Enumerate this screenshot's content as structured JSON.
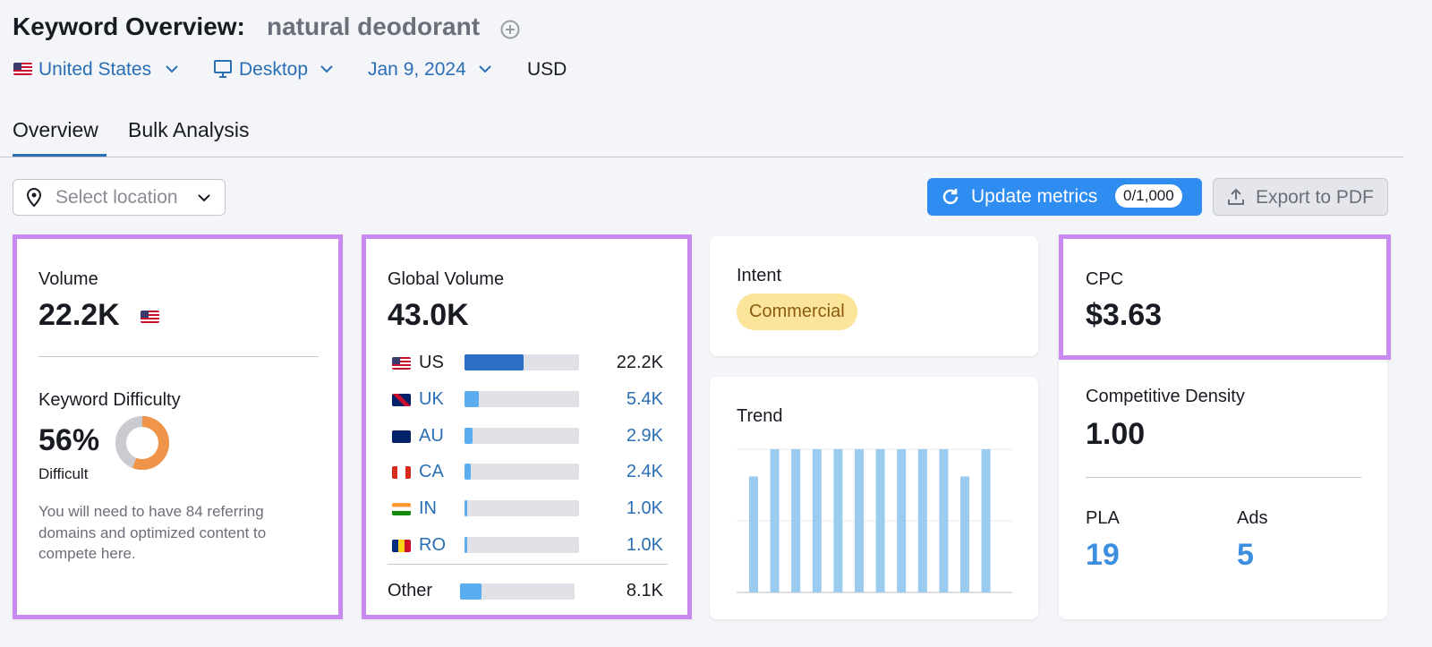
{
  "header": {
    "title": "Keyword Overview:",
    "keyword": "natural deodorant"
  },
  "filters": {
    "country": "United States",
    "device": "Desktop",
    "date": "Jan 9, 2024",
    "currency": "USD"
  },
  "tabs": [
    "Overview",
    "Bulk Analysis"
  ],
  "toolbar": {
    "location_placeholder": "Select location",
    "update_button": "Update metrics",
    "update_count": "0/1,000",
    "export_button": "Export to PDF"
  },
  "volume": {
    "label": "Volume",
    "value": "22.2K"
  },
  "keyword_difficulty": {
    "label": "Keyword Difficulty",
    "value": 56,
    "value_label": "56%",
    "level": "Difficult",
    "note": "You will need to have 84 referring domains and optimized content to compete here."
  },
  "global_volume": {
    "label": "Global Volume",
    "total": {
      "value": 43000,
      "label": "43.0K"
    },
    "countries": [
      {
        "code": "US",
        "volume": {
          "value": 22200,
          "label": "22.2K"
        }
      },
      {
        "code": "UK",
        "volume": {
          "value": 5400,
          "label": "5.4K"
        }
      },
      {
        "code": "AU",
        "volume": {
          "value": 2900,
          "label": "2.9K"
        }
      },
      {
        "code": "CA",
        "volume": {
          "value": 2400,
          "label": "2.4K"
        }
      },
      {
        "code": "IN",
        "volume": {
          "value": 1000,
          "label": "1.0K"
        }
      },
      {
        "code": "RO",
        "volume": {
          "value": 1000,
          "label": "1.0K"
        }
      }
    ],
    "other": {
      "name": "Other",
      "volume": {
        "value": 8100,
        "label": "8.1K"
      }
    }
  },
  "intent": {
    "label": "Intent",
    "value": "Commercial"
  },
  "trend": {
    "label": "Trend",
    "values": [
      81,
      100,
      100,
      100,
      100,
      100,
      100,
      100,
      100,
      100,
      81,
      100
    ],
    "ylim": [
      0,
      100
    ],
    "yticks": [
      0,
      50,
      100
    ]
  },
  "cpc": {
    "label": "CPC",
    "value": "$3.63"
  },
  "competitive_density": {
    "label": "Competitive Density",
    "value": "1.00"
  },
  "pla": {
    "label": "PLA",
    "value": 19
  },
  "ads": {
    "label": "Ads",
    "value": 5
  }
}
